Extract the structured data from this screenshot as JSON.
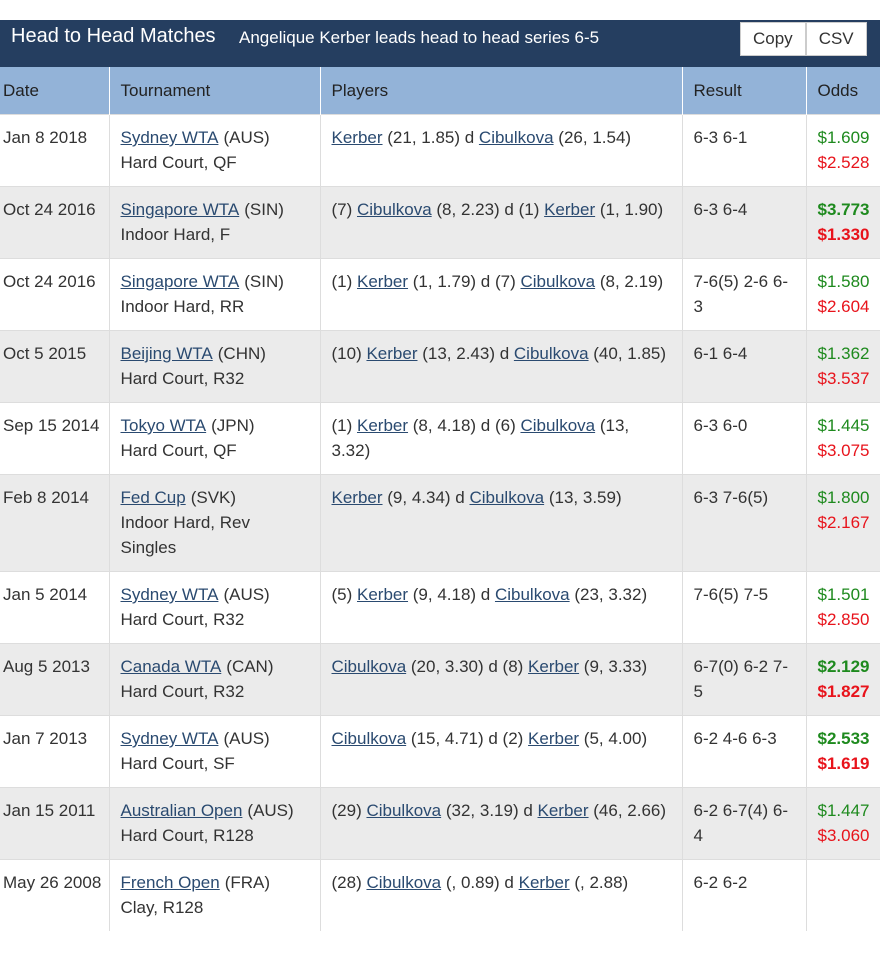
{
  "header": {
    "title": "Head to Head Matches",
    "subtitle": "Angelique Kerber leads head to head series 6-5",
    "buttons": [
      "Copy",
      "CSV"
    ]
  },
  "table": {
    "columns": [
      "Date",
      "Tournament",
      "Players",
      "Result",
      "Odds"
    ],
    "odds_colors": [
      "#1e8a1e",
      "#e8131b"
    ],
    "rows": [
      {
        "date": "Jan 8 2018",
        "tournament": "Sydney WTA",
        "country": "(AUS)",
        "surface": "Hard Court, QF",
        "players": [
          {
            "a": "Kerber"
          },
          {
            "t": " (21, 1.85) d "
          },
          {
            "a": "Cibulkova"
          },
          {
            "t": " (26, 1.54)"
          }
        ],
        "result": "6-3 6-1",
        "odds": [
          "$1.609",
          "$2.528"
        ],
        "bold": false
      },
      {
        "date": "Oct 24 2016",
        "tournament": "Singapore WTA",
        "country": "(SIN)",
        "surface": "Indoor Hard, F",
        "players": [
          {
            "t": "(7) "
          },
          {
            "a": "Cibulkova"
          },
          {
            "t": " (8, 2.23) d (1) "
          },
          {
            "a": "Kerber"
          },
          {
            "t": " (1, 1.90)"
          }
        ],
        "result": "6-3 6-4",
        "odds": [
          "$3.773",
          "$1.330"
        ],
        "bold": true
      },
      {
        "date": "Oct 24 2016",
        "tournament": "Singapore WTA",
        "country": "(SIN)",
        "surface": "Indoor Hard, RR",
        "players": [
          {
            "t": "(1) "
          },
          {
            "a": "Kerber"
          },
          {
            "t": " (1, 1.79) d (7) "
          },
          {
            "a": "Cibulkova"
          },
          {
            "t": " (8, 2.19)"
          }
        ],
        "result": "7-6(5) 2-6 6-3",
        "odds": [
          "$1.580",
          "$2.604"
        ],
        "bold": false
      },
      {
        "date": "Oct 5 2015",
        "tournament": "Beijing WTA",
        "country": "(CHN)",
        "surface": "Hard Court, R32",
        "players": [
          {
            "t": "(10) "
          },
          {
            "a": "Kerber"
          },
          {
            "t": " (13, 2.43) d "
          },
          {
            "a": "Cibulkova"
          },
          {
            "t": " (40, 1.85)"
          }
        ],
        "result": "6-1 6-4",
        "odds": [
          "$1.362",
          "$3.537"
        ],
        "bold": false
      },
      {
        "date": "Sep 15 2014",
        "tournament": "Tokyo WTA",
        "country": "(JPN)",
        "surface": "Hard Court, QF",
        "players": [
          {
            "t": "(1) "
          },
          {
            "a": "Kerber"
          },
          {
            "t": " (8, 4.18) d (6) "
          },
          {
            "a": "Cibulkova"
          },
          {
            "t": " (13, 3.32)"
          }
        ],
        "result": "6-3 6-0",
        "odds": [
          "$1.445",
          "$3.075"
        ],
        "bold": false
      },
      {
        "date": "Feb 8 2014",
        "tournament": "Fed Cup",
        "country": "(SVK)",
        "surface": "Indoor Hard, Rev Singles",
        "players": [
          {
            "a": "Kerber"
          },
          {
            "t": " (9, 4.34) d "
          },
          {
            "a": "Cibulkova"
          },
          {
            "t": " (13, 3.59)"
          }
        ],
        "result": "6-3 7-6(5)",
        "odds": [
          "$1.800",
          "$2.167"
        ],
        "bold": false
      },
      {
        "date": "Jan 5 2014",
        "tournament": "Sydney WTA",
        "country": "(AUS)",
        "surface": "Hard Court, R32",
        "players": [
          {
            "t": "(5) "
          },
          {
            "a": "Kerber"
          },
          {
            "t": " (9, 4.18) d "
          },
          {
            "a": "Cibulkova"
          },
          {
            "t": " (23, 3.32)"
          }
        ],
        "result": "7-6(5) 7-5",
        "odds": [
          "$1.501",
          "$2.850"
        ],
        "bold": false
      },
      {
        "date": "Aug 5 2013",
        "tournament": "Canada WTA",
        "country": "(CAN)",
        "surface": "Hard Court, R32",
        "players": [
          {
            "a": "Cibulkova"
          },
          {
            "t": " (20, 3.30) d (8) "
          },
          {
            "a": "Kerber"
          },
          {
            "t": " (9, 3.33)"
          }
        ],
        "result": "6-7(0) 6-2 7-5",
        "odds": [
          "$2.129",
          "$1.827"
        ],
        "bold": true
      },
      {
        "date": "Jan 7 2013",
        "tournament": "Sydney WTA",
        "country": "(AUS)",
        "surface": "Hard Court, SF",
        "players": [
          {
            "a": "Cibulkova"
          },
          {
            "t": " (15, 4.71) d (2) "
          },
          {
            "a": "Kerber"
          },
          {
            "t": " (5, 4.00)"
          }
        ],
        "result": "6-2 4-6 6-3",
        "odds": [
          "$2.533",
          "$1.619"
        ],
        "bold": true
      },
      {
        "date": "Jan 15 2011",
        "tournament": "Australian Open",
        "country": "(AUS)",
        "surface": "Hard Court, R128",
        "players": [
          {
            "t": "(29) "
          },
          {
            "a": "Cibulkova"
          },
          {
            "t": " (32, 3.19) d "
          },
          {
            "a": "Kerber"
          },
          {
            "t": " (46, 2.66)"
          }
        ],
        "result": "6-2 6-7(4) 6-4",
        "odds": [
          "$1.447",
          "$3.060"
        ],
        "bold": false
      },
      {
        "date": "May 26 2008",
        "tournament": "French Open",
        "country": "(FRA)",
        "surface": "Clay, R128",
        "players": [
          {
            "t": "(28) "
          },
          {
            "a": "Cibulkova"
          },
          {
            "t": " (, 0.89) d "
          },
          {
            "a": "Kerber"
          },
          {
            "t": " (, 2.88)"
          }
        ],
        "result": "6-2 6-2",
        "bold": false
      }
    ]
  }
}
